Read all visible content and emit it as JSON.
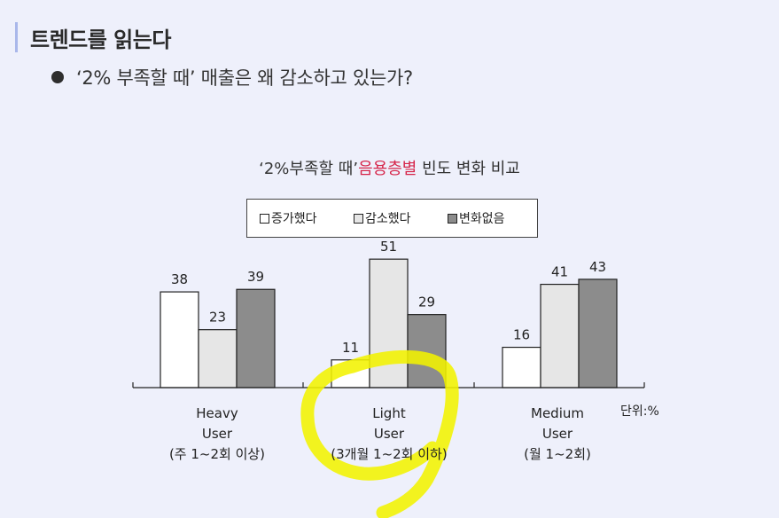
{
  "header": {
    "title": "트렌드를 읽는다",
    "bullet": "‘2% 부족할 때’ 매출은 왜 감소하고 있는가?"
  },
  "chart_data": {
    "type": "bar",
    "title_parts": [
      "‘2%부족할 때’",
      "음용층별",
      " 빈도 변화 비교"
    ],
    "unit": "단위:%",
    "categories": [
      {
        "name": "Heavy",
        "line2": "User",
        "line3": "(주 1~2회 이상)"
      },
      {
        "name": "Light",
        "line2": "User",
        "line3": "(3개월 1~2회 이하)"
      },
      {
        "name": "Medium",
        "line2": "User",
        "line3": "(월 1~2회)"
      }
    ],
    "series": [
      {
        "name": "증가했다",
        "values": [
          38,
          11,
          16
        ],
        "color": "#ffffff"
      },
      {
        "name": "감소했다",
        "values": [
          23,
          51,
          41
        ],
        "color": "#e6e6e6"
      },
      {
        "name": "변화없음",
        "values": [
          39,
          29,
          43
        ],
        "color": "#8c8c8c"
      }
    ],
    "ylim": [
      0,
      60
    ],
    "grid": false,
    "legend_position": "top-center"
  },
  "annotation": {
    "highlight_color": "#f3f300",
    "highlighted_category": "Light"
  }
}
